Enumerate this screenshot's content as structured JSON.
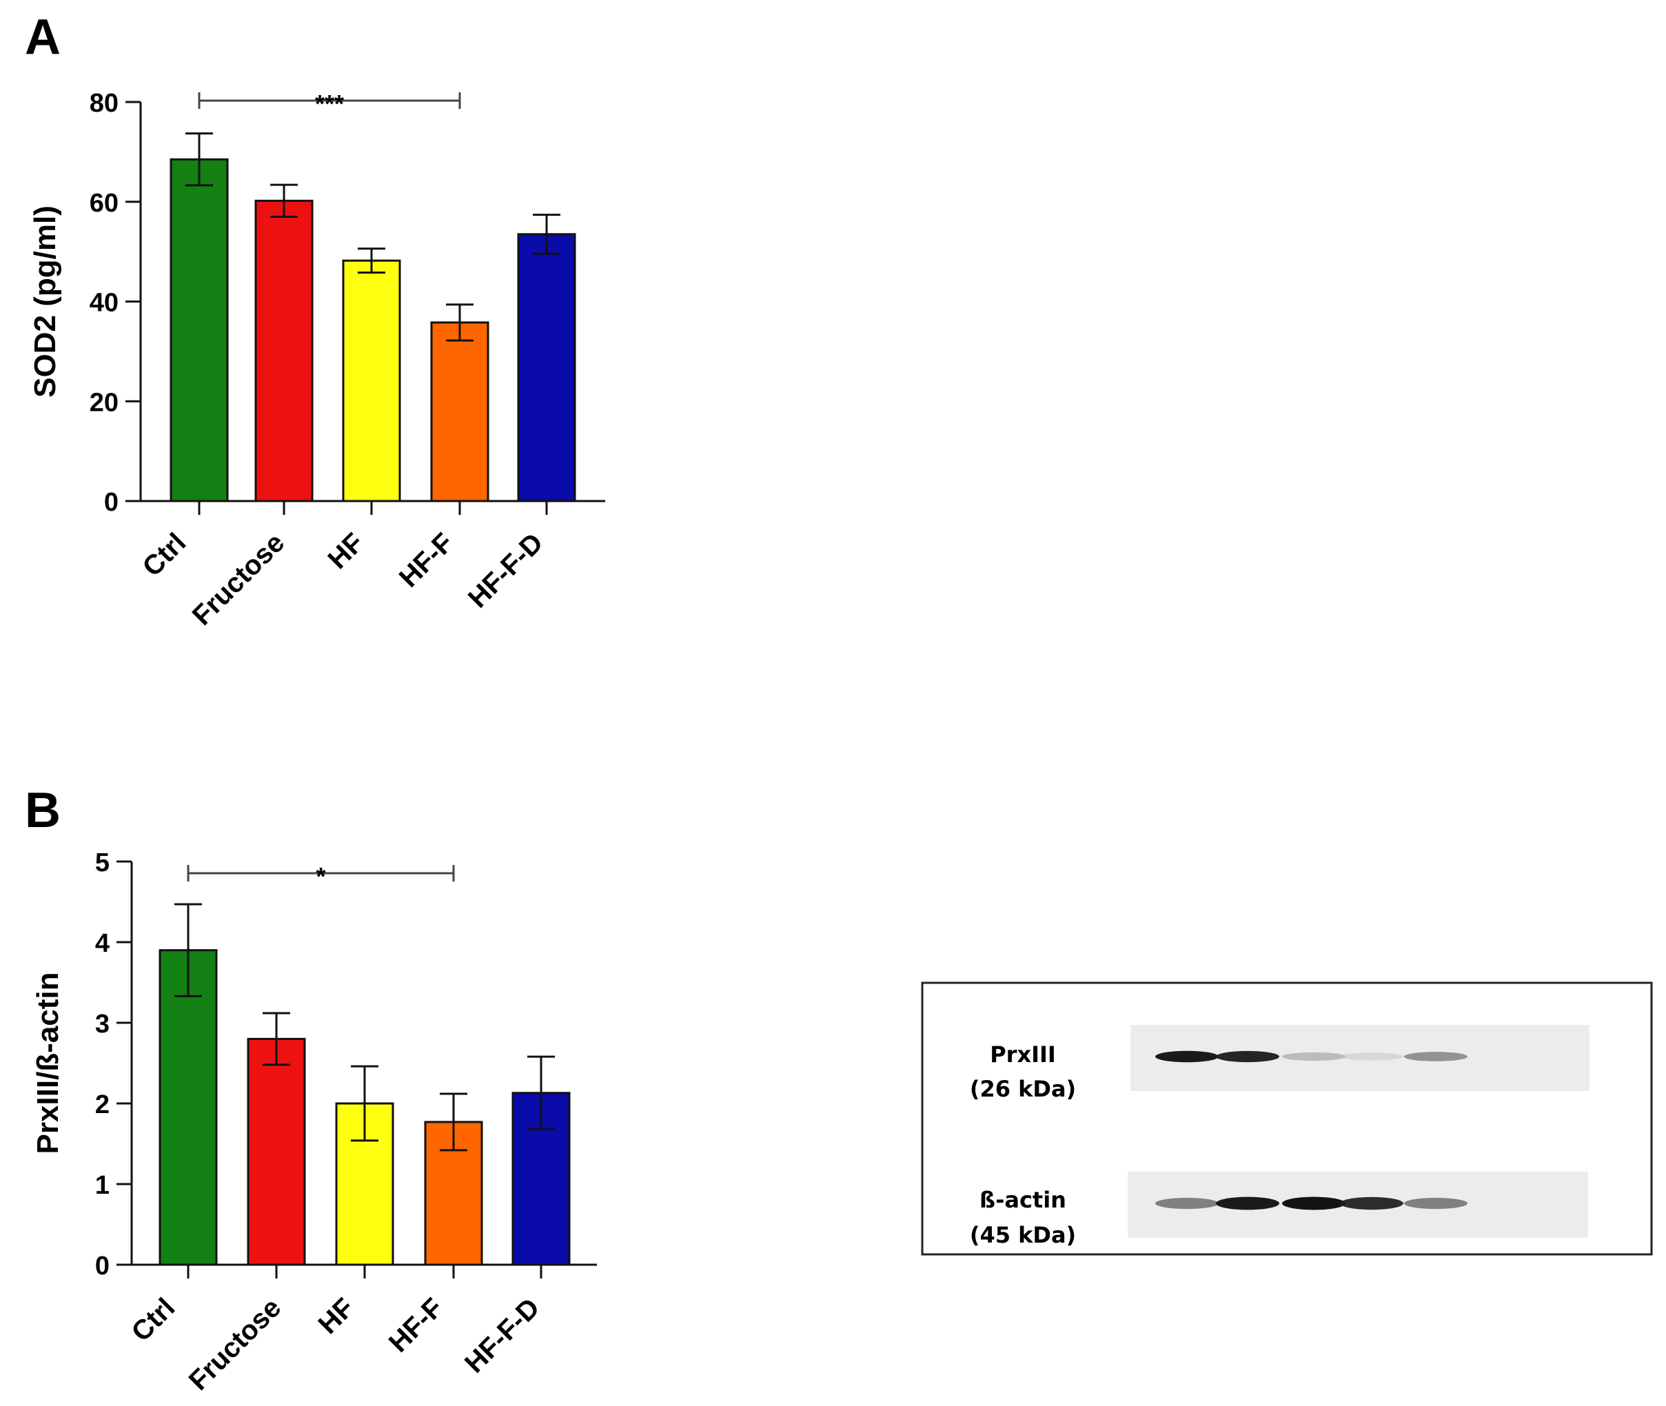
{
  "chart_data": [
    {
      "panel": "A",
      "type": "bar",
      "categories": [
        "Ctrl",
        "Fructose",
        "HF",
        "HF-F",
        "HF-F-D"
      ],
      "values": [
        68.5,
        60.2,
        48.2,
        35.8,
        53.5
      ],
      "errors": [
        5.2,
        3.2,
        2.4,
        3.6,
        3.9
      ],
      "colors": [
        "#138013",
        "#ee1111",
        "#ffff10",
        "#ff6600",
        "#0b0baa"
      ],
      "ylabel": "SOD2 (pg/ml)",
      "ylim": [
        0,
        80
      ],
      "yticks": [
        "0",
        "20",
        "40",
        "60",
        "80"
      ],
      "significance": {
        "from": "Ctrl",
        "to": "HF-F",
        "label": "***"
      },
      "grid": false
    },
    {
      "panel": "B",
      "type": "bar",
      "categories": [
        "Ctrl",
        "Fructose",
        "HF",
        "HF-F",
        "HF-F-D"
      ],
      "values": [
        3.9,
        2.8,
        2.0,
        1.77,
        2.13
      ],
      "errors": [
        0.57,
        0.32,
        0.46,
        0.35,
        0.45
      ],
      "colors": [
        "#138013",
        "#ee1111",
        "#ffff10",
        "#ff6600",
        "#0b0baa"
      ],
      "ylabel": "PrxIII/ß-actin",
      "ylim": [
        0,
        5
      ],
      "yticks": [
        "0",
        "1",
        "2",
        "3",
        "4",
        "5"
      ],
      "significance": {
        "from": "Ctrl",
        "to": "HF-F",
        "label": "*"
      },
      "grid": false
    }
  ],
  "western_blot": {
    "rows": [
      {
        "name": "PrxIII",
        "size": "(26 kDa)",
        "intensities": [
          0.95,
          0.92,
          0.35,
          0.18,
          0.55
        ]
      },
      {
        "name": "ß-actin",
        "size": "(45 kDa)",
        "intensities": [
          0.62,
          0.95,
          0.97,
          0.9,
          0.62
        ]
      }
    ]
  }
}
